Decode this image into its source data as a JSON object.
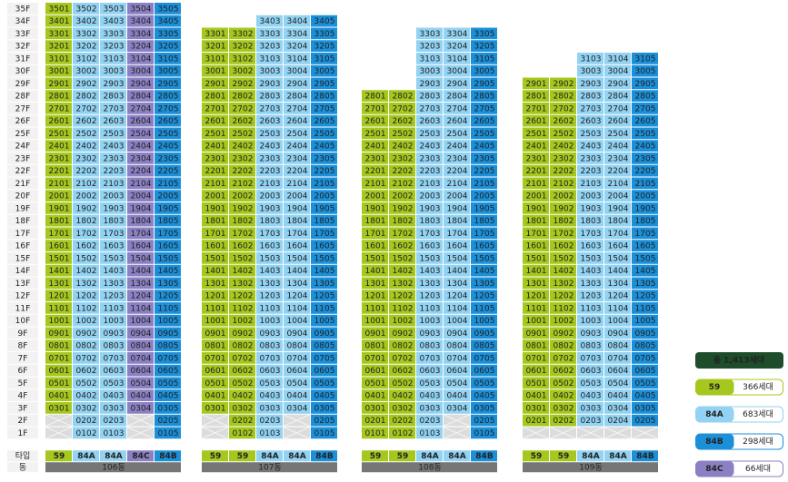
{
  "floors": [
    "35F",
    "34F",
    "33F",
    "32F",
    "31F",
    "30F",
    "29F",
    "28F",
    "27F",
    "26F",
    "25F",
    "24F",
    "23F",
    "22F",
    "21F",
    "20F",
    "19F",
    "18F",
    "17F",
    "16F",
    "15F",
    "14F",
    "13F",
    "12F",
    "11F",
    "10F",
    "9F",
    "8F",
    "7F",
    "6F",
    "5F",
    "4F",
    "3F",
    "2F",
    "1F"
  ],
  "type_label": "타입",
  "building_label": "동",
  "legend": {
    "total": "총 1,413세대",
    "types": [
      {
        "name": "59",
        "count": "366세대",
        "color": "#a6c81e"
      },
      {
        "name": "84A",
        "count": "683세대",
        "color": "#92d2f2"
      },
      {
        "name": "84B",
        "count": "298세대",
        "color": "#1b8fd8"
      },
      {
        "name": "84C",
        "count": "66세대",
        "color": "#8b80c2"
      }
    ]
  },
  "buildings": [
    {
      "name": "106동",
      "types": [
        "59",
        "84A",
        "84A",
        "84C",
        "84B"
      ],
      "rows": [
        [
          "3501",
          "3502",
          "3503",
          "3504",
          "3505"
        ],
        [
          "3401",
          "3402",
          "3403",
          "3404",
          "3405"
        ],
        [
          "3301",
          "3302",
          "3303",
          "3304",
          "3305"
        ],
        [
          "3201",
          "3202",
          "3203",
          "3204",
          "3205"
        ],
        [
          "3101",
          "3102",
          "3103",
          "3104",
          "3105"
        ],
        [
          "3001",
          "3002",
          "3003",
          "3004",
          "3005"
        ],
        [
          "2901",
          "2902",
          "2903",
          "2904",
          "2905"
        ],
        [
          "2801",
          "2802",
          "2803",
          "2804",
          "2805"
        ],
        [
          "2701",
          "2702",
          "2703",
          "2704",
          "2705"
        ],
        [
          "2601",
          "2602",
          "2603",
          "2604",
          "2605"
        ],
        [
          "2501",
          "2502",
          "2503",
          "2504",
          "2505"
        ],
        [
          "2401",
          "2402",
          "2403",
          "2404",
          "2405"
        ],
        [
          "2301",
          "2302",
          "2303",
          "2304",
          "2305"
        ],
        [
          "2201",
          "2202",
          "2203",
          "2204",
          "2205"
        ],
        [
          "2101",
          "2102",
          "2103",
          "2104",
          "2105"
        ],
        [
          "2001",
          "2002",
          "2003",
          "2004",
          "2005"
        ],
        [
          "1901",
          "1902",
          "1903",
          "1904",
          "1905"
        ],
        [
          "1801",
          "1802",
          "1803",
          "1804",
          "1805"
        ],
        [
          "1701",
          "1702",
          "1703",
          "1704",
          "1705"
        ],
        [
          "1601",
          "1602",
          "1603",
          "1604",
          "1605"
        ],
        [
          "1501",
          "1502",
          "1503",
          "1504",
          "1505"
        ],
        [
          "1401",
          "1402",
          "1403",
          "1404",
          "1405"
        ],
        [
          "1301",
          "1302",
          "1303",
          "1304",
          "1305"
        ],
        [
          "1201",
          "1202",
          "1203",
          "1204",
          "1205"
        ],
        [
          "1101",
          "1102",
          "1103",
          "1104",
          "1105"
        ],
        [
          "1001",
          "1002",
          "1003",
          "1004",
          "1005"
        ],
        [
          "0901",
          "0902",
          "0903",
          "0904",
          "0905"
        ],
        [
          "0801",
          "0802",
          "0803",
          "0804",
          "0805"
        ],
        [
          "0701",
          "0702",
          "0703",
          "0704",
          "0705"
        ],
        [
          "0601",
          "0602",
          "0603",
          "0604",
          "0605"
        ],
        [
          "0501",
          "0502",
          "0503",
          "0504",
          "0505"
        ],
        [
          "0401",
          "0402",
          "0403",
          "0404",
          "0405"
        ],
        [
          "0301",
          "0302",
          "0303",
          "0304",
          "0305"
        ],
        [
          null,
          "0202",
          "0203",
          null,
          "0205"
        ],
        [
          null,
          "0102",
          "0103",
          null,
          "0105"
        ]
      ]
    },
    {
      "name": "107동",
      "types": [
        "59",
        "59",
        "84A",
        "84A",
        "84B"
      ],
      "rows": [
        null,
        [
          null,
          null,
          "3403",
          "3404",
          "3405"
        ],
        [
          "3301",
          "3302",
          "3303",
          "3304",
          "3305"
        ],
        [
          "3201",
          "3202",
          "3203",
          "3204",
          "3205"
        ],
        [
          "3101",
          "3102",
          "3103",
          "3104",
          "3105"
        ],
        [
          "3001",
          "3002",
          "3003",
          "3004",
          "3005"
        ],
        [
          "2901",
          "2902",
          "2903",
          "2904",
          "2905"
        ],
        [
          "2801",
          "2802",
          "2803",
          "2804",
          "2805"
        ],
        [
          "2701",
          "2702",
          "2703",
          "2704",
          "2705"
        ],
        [
          "2601",
          "2602",
          "2603",
          "2604",
          "2605"
        ],
        [
          "2501",
          "2502",
          "2503",
          "2504",
          "2505"
        ],
        [
          "2401",
          "2402",
          "2403",
          "2404",
          "2405"
        ],
        [
          "2301",
          "2302",
          "2303",
          "2304",
          "2305"
        ],
        [
          "2201",
          "2202",
          "2203",
          "2204",
          "2205"
        ],
        [
          "2101",
          "2102",
          "2103",
          "2104",
          "2105"
        ],
        [
          "2001",
          "2002",
          "2003",
          "2004",
          "2005"
        ],
        [
          "1901",
          "1902",
          "1903",
          "1904",
          "1905"
        ],
        [
          "1801",
          "1802",
          "1803",
          "1804",
          "1805"
        ],
        [
          "1701",
          "1702",
          "1703",
          "1704",
          "1705"
        ],
        [
          "1601",
          "1602",
          "1603",
          "1604",
          "1605"
        ],
        [
          "1501",
          "1502",
          "1503",
          "1504",
          "1505"
        ],
        [
          "1401",
          "1402",
          "1403",
          "1404",
          "1405"
        ],
        [
          "1301",
          "1302",
          "1303",
          "1304",
          "1305"
        ],
        [
          "1201",
          "1202",
          "1203",
          "1204",
          "1205"
        ],
        [
          "1101",
          "1102",
          "1103",
          "1104",
          "1105"
        ],
        [
          "1001",
          "1002",
          "1003",
          "1004",
          "1005"
        ],
        [
          "0901",
          "0902",
          "0903",
          "0904",
          "0905"
        ],
        [
          "0801",
          "0802",
          "0803",
          "0804",
          "0805"
        ],
        [
          "0701",
          "0702",
          "0703",
          "0704",
          "0705"
        ],
        [
          "0601",
          "0602",
          "0603",
          "0604",
          "0605"
        ],
        [
          "0501",
          "0502",
          "0503",
          "0504",
          "0505"
        ],
        [
          "0401",
          "0402",
          "0403",
          "0404",
          "0405"
        ],
        [
          "0301",
          "0302",
          "0303",
          "0304",
          "0305"
        ],
        [
          null,
          "0202",
          "0203",
          null,
          "0205"
        ],
        [
          null,
          "0102",
          "0103",
          null,
          "0105"
        ]
      ]
    },
    {
      "name": "108동",
      "types": [
        "59",
        "59",
        "84A",
        "84A",
        "84B"
      ],
      "rows": [
        null,
        null,
        [
          null,
          null,
          "3303",
          "3304",
          "3305"
        ],
        [
          null,
          null,
          "3203",
          "3204",
          "3205"
        ],
        [
          null,
          null,
          "3103",
          "3104",
          "3105"
        ],
        [
          null,
          null,
          "3003",
          "3004",
          "3005"
        ],
        [
          null,
          null,
          "2903",
          "2904",
          "2905"
        ],
        [
          "2801",
          "2802",
          "2803",
          "2804",
          "2805"
        ],
        [
          "2701",
          "2702",
          "2703",
          "2704",
          "2705"
        ],
        [
          "2601",
          "2602",
          "2603",
          "2604",
          "2605"
        ],
        [
          "2501",
          "2502",
          "2503",
          "2504",
          "2505"
        ],
        [
          "2401",
          "2402",
          "2403",
          "2404",
          "2405"
        ],
        [
          "2301",
          "2302",
          "2303",
          "2304",
          "2305"
        ],
        [
          "2201",
          "2202",
          "2203",
          "2204",
          "2205"
        ],
        [
          "2101",
          "2102",
          "2103",
          "2104",
          "2105"
        ],
        [
          "2001",
          "2002",
          "2003",
          "2004",
          "2005"
        ],
        [
          "1901",
          "1902",
          "1903",
          "1904",
          "1905"
        ],
        [
          "1801",
          "1802",
          "1803",
          "1804",
          "1805"
        ],
        [
          "1701",
          "1702",
          "1703",
          "1704",
          "1705"
        ],
        [
          "1601",
          "1602",
          "1603",
          "1604",
          "1605"
        ],
        [
          "1501",
          "1502",
          "1503",
          "1504",
          "1505"
        ],
        [
          "1401",
          "1402",
          "1403",
          "1404",
          "1405"
        ],
        [
          "1301",
          "1302",
          "1303",
          "1304",
          "1305"
        ],
        [
          "1201",
          "1202",
          "1203",
          "1204",
          "1205"
        ],
        [
          "1101",
          "1102",
          "1103",
          "1104",
          "1105"
        ],
        [
          "1001",
          "1002",
          "1003",
          "1004",
          "1005"
        ],
        [
          "0901",
          "0902",
          "0903",
          "0904",
          "0905"
        ],
        [
          "0801",
          "0802",
          "0803",
          "0804",
          "0805"
        ],
        [
          "0701",
          "0702",
          "0703",
          "0704",
          "0705"
        ],
        [
          "0601",
          "0602",
          "0603",
          "0604",
          "0605"
        ],
        [
          "0501",
          "0502",
          "0503",
          "0504",
          "0505"
        ],
        [
          "0401",
          "0402",
          "0403",
          "0404",
          "0405"
        ],
        [
          "0301",
          "0302",
          "0303",
          "0304",
          "0305"
        ],
        [
          "0201",
          "0202",
          "0203",
          null,
          "0205"
        ],
        [
          "0101",
          "0102",
          "0103",
          null,
          "0105"
        ]
      ]
    },
    {
      "name": "109동",
      "types": [
        "59",
        "59",
        "84A",
        "84A",
        "84B"
      ],
      "rows": [
        null,
        null,
        null,
        null,
        [
          null,
          null,
          "3103",
          "3104",
          "3105"
        ],
        [
          null,
          null,
          "3003",
          "3004",
          "3005"
        ],
        [
          "2901",
          "2902",
          "2903",
          "2904",
          "2905"
        ],
        [
          "2801",
          "2802",
          "2803",
          "2804",
          "2805"
        ],
        [
          "2701",
          "2702",
          "2703",
          "2704",
          "2705"
        ],
        [
          "2601",
          "2602",
          "2603",
          "2604",
          "2605"
        ],
        [
          "2501",
          "2502",
          "2503",
          "2504",
          "2505"
        ],
        [
          "2401",
          "2402",
          "2403",
          "2404",
          "2405"
        ],
        [
          "2301",
          "2302",
          "2303",
          "2304",
          "2305"
        ],
        [
          "2201",
          "2202",
          "2203",
          "2204",
          "2205"
        ],
        [
          "2101",
          "2102",
          "2103",
          "2104",
          "2105"
        ],
        [
          "2001",
          "2002",
          "2003",
          "2004",
          "2005"
        ],
        [
          "1901",
          "1902",
          "1903",
          "1904",
          "1905"
        ],
        [
          "1801",
          "1802",
          "1803",
          "1804",
          "1805"
        ],
        [
          "1701",
          "1702",
          "1703",
          "1704",
          "1705"
        ],
        [
          "1601",
          "1602",
          "1603",
          "1604",
          "1605"
        ],
        [
          "1501",
          "1502",
          "1503",
          "1504",
          "1505"
        ],
        [
          "1401",
          "1402",
          "1403",
          "1404",
          "1405"
        ],
        [
          "1301",
          "1302",
          "1303",
          "1304",
          "1305"
        ],
        [
          "1201",
          "1202",
          "1203",
          "1204",
          "1205"
        ],
        [
          "1101",
          "1102",
          "1103",
          "1104",
          "1105"
        ],
        [
          "1001",
          "1002",
          "1003",
          "1004",
          "1005"
        ],
        [
          "0901",
          "0902",
          "0903",
          "0904",
          "0905"
        ],
        [
          "0801",
          "0802",
          "0803",
          "0804",
          "0805"
        ],
        [
          "0701",
          "0702",
          "0703",
          "0704",
          "0705"
        ],
        [
          "0601",
          "0602",
          "0603",
          "0604",
          "0605"
        ],
        [
          "0501",
          "0502",
          "0503",
          "0504",
          "0505"
        ],
        [
          "0401",
          "0402",
          "0403",
          "0404",
          "0405"
        ],
        [
          "0301",
          "0302",
          "0303",
          "0304",
          "0305"
        ],
        [
          "0201",
          "0202",
          "0203",
          "0204",
          "0205"
        ],
        [
          null,
          null,
          null,
          null,
          null
        ]
      ]
    }
  ]
}
